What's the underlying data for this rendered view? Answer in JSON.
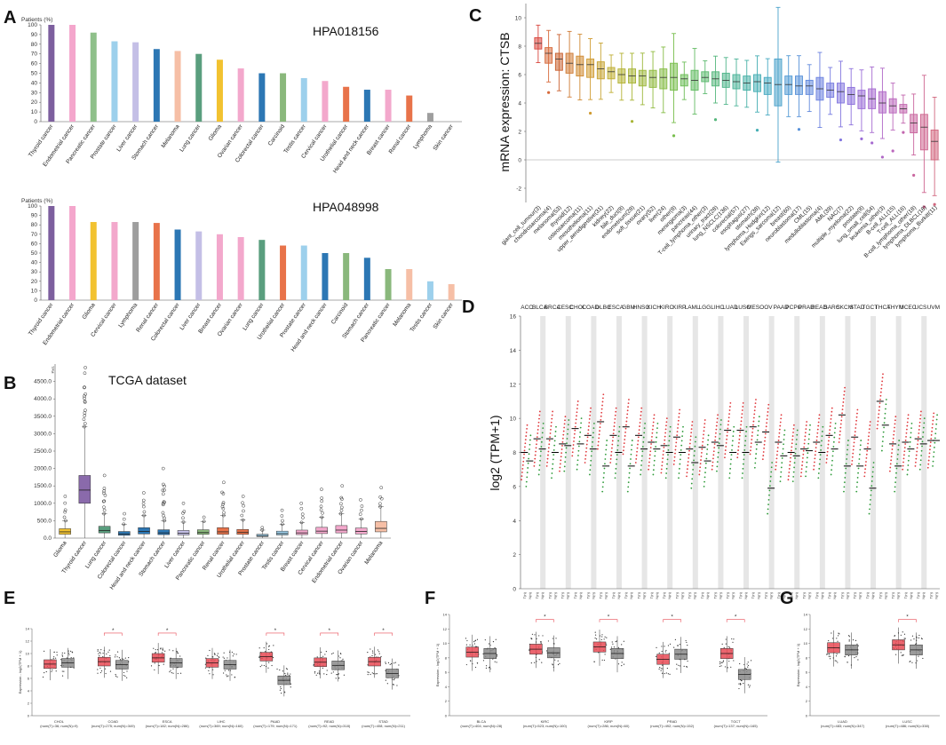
{
  "panels": {
    "A": "A",
    "B": "B",
    "C": "C",
    "D": "D",
    "E": "E",
    "F": "F",
    "G": "G"
  },
  "chart_data": [
    {
      "id": "A1",
      "type": "bar",
      "title": "HPA018156",
      "ylabel": "Patients (%)",
      "ylim": [
        0,
        100
      ],
      "yticks": [
        0,
        10,
        20,
        30,
        40,
        50,
        60,
        70,
        80,
        90,
        100
      ],
      "categories": [
        "Thyroid cancer",
        "Endometrial cancer",
        "Pancreatic cancer",
        "Prostate cancer",
        "Liver cancer",
        "Stomach cancer",
        "Melanoma",
        "Lung cancer",
        "Glioma",
        "Ovarian cancer",
        "Colorectal cancer",
        "Carcinoid",
        "Testis cancer",
        "Cervical cancer",
        "Urothelial cancer",
        "Head and neck cancer",
        "Breast cancer",
        "Renal cancer",
        "Lymphoma",
        "Skin cancer"
      ],
      "values": [
        100,
        100,
        92,
        83,
        82,
        75,
        73,
        70,
        64,
        55,
        50,
        50,
        45,
        42,
        36,
        33,
        33,
        27,
        9,
        0
      ],
      "colors": [
        "#7d5f9e",
        "#f4a6cc",
        "#8fc08a",
        "#9dd0ec",
        "#c4bfe6",
        "#2c77b4",
        "#f6bfa6",
        "#5a9e7e",
        "#f2c230",
        "#f3a8cc",
        "#2c77b4",
        "#8ab87c",
        "#9dd0ec",
        "#f3a8cc",
        "#e8734a",
        "#2c77b4",
        "#f3a8cc",
        "#e8734a",
        "#9e9e9e",
        "#cccccc"
      ]
    },
    {
      "id": "A2",
      "type": "bar",
      "title": "HPA048998",
      "ylabel": "Patients (%)",
      "ylim": [
        0,
        100
      ],
      "yticks": [
        0,
        10,
        20,
        30,
        40,
        50,
        60,
        70,
        80,
        90,
        100
      ],
      "categories": [
        "Thyroid cancer",
        "Endometrial cancer",
        "Glioma",
        "Cervical cancer",
        "Lymphoma",
        "Renal cancer",
        "Colorectal cancer",
        "Liver cancer",
        "Breast cancer",
        "Ovarian cancer",
        "Lung cancer",
        "Urothelial cancer",
        "Prostate cancer",
        "Head and neck cancer",
        "Carcinoid",
        "Stomach cancer",
        "Pancreatic cancer",
        "Melanoma",
        "Testis cancer",
        "Skin cancer"
      ],
      "values": [
        100,
        100,
        83,
        83,
        83,
        82,
        75,
        73,
        70,
        67,
        64,
        58,
        58,
        50,
        50,
        45,
        33,
        33,
        20,
        17
      ],
      "colors": [
        "#7d5f9e",
        "#f4a6cc",
        "#f2c230",
        "#f3a8cc",
        "#9e9e9e",
        "#e8734a",
        "#2c77b4",
        "#c4bfe6",
        "#f3a8cc",
        "#f3a8cc",
        "#5a9e7e",
        "#e8734a",
        "#9dd0ec",
        "#2c77b4",
        "#8ab87c",
        "#2c77b4",
        "#8ab87c",
        "#f6bfa6",
        "#9dd0ec",
        "#f6bfa6"
      ]
    },
    {
      "id": "B",
      "type": "box",
      "title": "TCGA dataset",
      "ylabel": "TPM",
      "ylim": [
        0,
        5000
      ],
      "yticks": [
        "0.0",
        "500.0",
        "1000.0",
        "1500.0",
        "2000.0",
        "2500.0",
        "3000.0",
        "3500.0",
        "4000.0",
        "4500.0"
      ],
      "categories": [
        "Glioma",
        "Thyroid cancer",
        "Lung cancer",
        "Colorectal cancer",
        "Head and neck cancer",
        "Stomach cancer",
        "Liver cancer",
        "Pancreatic cancer",
        "Renal cancer",
        "Urothelial cancer",
        "Prostate cancer",
        "Testis cancer",
        "Breast cancer",
        "Cervical cancer",
        "Endometrial cancer",
        "Ovarian cancer",
        "Melanoma"
      ],
      "medians": [
        180,
        1380,
        220,
        120,
        190,
        150,
        140,
        160,
        180,
        170,
        70,
        130,
        150,
        200,
        230,
        190,
        280
      ],
      "q1": [
        110,
        1000,
        150,
        80,
        120,
        100,
        90,
        110,
        110,
        110,
        45,
        90,
        100,
        130,
        150,
        120,
        180
      ],
      "q3": [
        270,
        1800,
        340,
        190,
        300,
        240,
        220,
        240,
        300,
        250,
        110,
        200,
        230,
        310,
        360,
        290,
        480
      ],
      "whisker_high": [
        500,
        3200,
        700,
        400,
        650,
        500,
        460,
        480,
        650,
        520,
        230,
        400,
        450,
        600,
        700,
        550,
        900
      ],
      "max_outlier": [
        1200,
        4900,
        1800,
        700,
        1300,
        2000,
        1000,
        600,
        1600,
        1200,
        300,
        800,
        1000,
        1400,
        1500,
        1100,
        1450
      ],
      "colors": [
        "#f2c230",
        "#8a6aab",
        "#5a9e7e",
        "#2c77b4",
        "#2c77b4",
        "#2c77b4",
        "#c4bfe6",
        "#8ab87c",
        "#e8734a",
        "#e8734a",
        "#9dd0ec",
        "#9dd0ec",
        "#f3a8cc",
        "#f3a8cc",
        "#f3a8cc",
        "#f3a8cc",
        "#f6bfa6"
      ]
    },
    {
      "id": "C",
      "type": "box",
      "ylabel": "mRNA expression: CTSB",
      "ylim": [
        -3,
        11
      ],
      "yticks": [
        -2,
        0,
        2,
        4,
        6,
        8,
        10
      ],
      "categories": [
        "giant_cell_tumour(3)",
        "chondrosarcoma(4)",
        "melanoma(53)",
        "thyroid(12)",
        "osteosarcoma(11)",
        "mesothelioma(11)",
        "upper_aerodigestive(31)",
        "kidney(22)",
        "bile_duct(8)",
        "endometrium(28)",
        "soft_tissue(21)",
        "ovary(52)",
        "liver(24)",
        "other(8)",
        "meningioma(3)",
        "pancreas(44)",
        "T-cell_lymphoma_other(3)",
        "urinary_tract(28)",
        "lung_NSCLC(136)",
        "colorectal(57)",
        "esophagus(27)",
        "stomach(38)",
        "lymphoma_Hodgkin(12)",
        "Ewings_sarcoma(12)",
        "breast(60)",
        "neuroblastoma(17)",
        "CML(15)",
        "medulloblastoma(4)",
        "AML(39)",
        "NAC(7)",
        "multiple_myeloma(22)",
        "prostate(8)",
        "lung_small_cell(54)",
        "leukemia_other(3)",
        "B-cell_ALL(15)",
        "T-cell_ALL(16)",
        "B-cell_lymphoma_other(18)",
        "lymphoma_DLBCL(18)",
        "lymphoma_Burkitt(11)"
      ],
      "medians": [
        8.2,
        7.5,
        7.1,
        6.8,
        6.7,
        6.7,
        6.4,
        6.2,
        6.0,
        5.9,
        5.9,
        5.8,
        5.8,
        5.8,
        5.7,
        5.6,
        5.8,
        5.7,
        5.6,
        5.5,
        5.4,
        5.5,
        5.4,
        5.3,
        5.3,
        5.2,
        5.2,
        5.0,
        4.9,
        4.8,
        4.6,
        4.5,
        4.3,
        4.0,
        3.8,
        3.6,
        2.6,
        2.3,
        1.3
      ],
      "q1": [
        7.8,
        6.8,
        6.3,
        6.1,
        5.9,
        5.8,
        5.7,
        5.7,
        5.4,
        5.4,
        5.2,
        5.1,
        5.0,
        4.9,
        5.2,
        4.9,
        5.5,
        5.2,
        5.1,
        5.0,
        4.9,
        4.8,
        4.6,
        3.8,
        4.6,
        4.6,
        4.6,
        4.2,
        4.4,
        4.0,
        3.9,
        3.6,
        3.6,
        3.3,
        3.3,
        3.3,
        1.9,
        0.7,
        0.0
      ],
      "q3": [
        8.6,
        7.9,
        7.5,
        7.5,
        7.3,
        7.1,
        6.9,
        6.5,
        6.4,
        6.4,
        6.3,
        6.3,
        6.4,
        6.8,
        6.0,
        6.3,
        6.2,
        6.2,
        6.1,
        6.0,
        5.9,
        6.0,
        5.8,
        7.1,
        5.9,
        5.9,
        5.6,
        5.8,
        5.4,
        5.4,
        5.1,
        4.9,
        5.0,
        4.8,
        4.3,
        3.9,
        3.2,
        3.2,
        2.1
      ],
      "colors": [
        "#d9453d",
        "#d76a3b",
        "#c9602f",
        "#cf7a33",
        "#d08a32",
        "#d09b32",
        "#c7a433",
        "#bfae33",
        "#b4b233",
        "#a8b536",
        "#9db73a",
        "#90ba3f",
        "#85bc45",
        "#78be4d",
        "#6cbd57",
        "#62bb62",
        "#5bb96e",
        "#55b77c",
        "#4fb58a",
        "#4ab398",
        "#47b0a6",
        "#46aeb4",
        "#46a9c1",
        "#4aa2cb",
        "#519ad3",
        "#5891d9",
        "#6088dc",
        "#6a80df",
        "#757ae0",
        "#8175df",
        "#8d71dc",
        "#9a6dd7",
        "#a66ad0",
        "#b068c7",
        "#ba66bc",
        "#c266ae",
        "#c9669f",
        "#ce668f",
        "#d1667e"
      ]
    },
    {
      "id": "D",
      "type": "scatter",
      "ylabel": "log2 (TPM+1)",
      "ylim": [
        0,
        16
      ],
      "yticks": [
        0,
        2,
        4,
        6,
        8,
        10,
        12,
        14,
        16
      ],
      "categories": [
        "ACC",
        "BLCA",
        "BRCA",
        "CESC",
        "CHOL",
        "COAD",
        "DLBC",
        "ESCA",
        "GBM",
        "HNSC",
        "KICH",
        "KIRC",
        "KIRP",
        "LAML",
        "LGG",
        "LIHC",
        "LUAD",
        "LUSC",
        "MESO",
        "OV",
        "PAAD",
        "PCPG",
        "PRAD",
        "READ",
        "SARC",
        "SKCM",
        "STAD",
        "TGCT",
        "THCA",
        "THYM",
        "UCEC",
        "UCS",
        "UVM"
      ],
      "highlighted": [
        "DLBC",
        "GBM",
        "OV",
        "PAAD",
        "SKCM",
        "STAD",
        "TGCT",
        "THCA"
      ],
      "tumor_median": [
        8.0,
        8.8,
        8.8,
        8.5,
        9.4,
        9.0,
        9.8,
        9.0,
        9.5,
        9.0,
        8.6,
        8.4,
        8.9,
        8.2,
        8.3,
        8.6,
        9.3,
        9.3,
        9.5,
        9.2,
        8.6,
        8.0,
        8.2,
        8.6,
        9.0,
        10.2,
        8.9,
        8.2,
        11.0,
        8.5,
        8.6,
        8.8,
        8.7
      ],
      "normal_median": [
        7.5,
        8.2,
        8.0,
        8.4,
        8.5,
        8.2,
        7.2,
        8.0,
        7.2,
        8.2,
        8.2,
        8.0,
        8.0,
        7.4,
        7.5,
        8.4,
        8.0,
        8.0,
        8.6,
        5.9,
        7.8,
        7.8,
        8.1,
        8.0,
        8.2,
        7.2,
        7.2,
        5.9,
        9.6,
        7.2,
        8.2,
        8.5,
        8.7
      ],
      "x_tick_prefix": [
        "T",
        "N"
      ]
    },
    {
      "id": "E",
      "type": "box",
      "ylabel": "Expression - log2(TPM + 1)",
      "ylim": [
        0,
        14
      ],
      "yticks": [
        0,
        2,
        4,
        6,
        8,
        10,
        12,
        14
      ],
      "categories": [
        "CHOL",
        "COAD",
        "ESCA",
        "LIHC",
        "PAAD",
        "READ",
        "STAD"
      ],
      "sample_labels": [
        "(num(T)=36; num(N)=9)",
        "(num(T)=275; num(N)=349)",
        "(num(T)=182; num(N)=286)",
        "(num(T)=369; num(N)=160)",
        "(num(T)=179; num(N)=171)",
        "(num(T)=92; num(N)=318)",
        "(num(T)=408; num(N)=211)"
      ],
      "tumor_median": [
        8.3,
        8.7,
        9.3,
        8.5,
        9.5,
        8.6,
        8.7
      ],
      "normal_median": [
        8.5,
        8.2,
        8.5,
        8.2,
        5.7,
        8.1,
        6.8
      ],
      "significant": [
        false,
        true,
        true,
        false,
        true,
        true,
        true
      ]
    },
    {
      "id": "F",
      "type": "box",
      "ylabel": "Expression - log2(TPM + 1)",
      "ylim": [
        0,
        14
      ],
      "yticks": [
        0,
        2,
        4,
        6,
        8,
        10,
        12,
        14
      ],
      "categories": [
        "BLCA",
        "KIRC",
        "KIRP",
        "PRAD",
        "TGCT"
      ],
      "sample_labels": [
        "(num(T)=404; num(N)=28)",
        "(num(T)=523; num(N)=100)",
        "(num(T)=286; num(N)=60)",
        "(num(T)=492; num(N)=152)",
        "(num(T)=137; num(N)=165)"
      ],
      "tumor_median": [
        8.8,
        9.2,
        9.5,
        7.8,
        8.6
      ],
      "normal_median": [
        8.6,
        8.7,
        8.6,
        8.5,
        5.7
      ],
      "significant": [
        false,
        true,
        true,
        true,
        true
      ]
    },
    {
      "id": "G",
      "type": "box",
      "ylabel": "Expression - log2(TPM + 1)",
      "ylim": [
        0,
        14
      ],
      "yticks": [
        0,
        2,
        4,
        6,
        8,
        10,
        12,
        14
      ],
      "categories": [
        "LUAD",
        "LUSC"
      ],
      "sample_labels": [
        "(num(T)=483; num(N)=347)",
        "(num(T)=486; num(N)=338)"
      ],
      "tumor_median": [
        9.4,
        9.8
      ],
      "normal_median": [
        9.1,
        9.1
      ],
      "significant": [
        false,
        true
      ]
    }
  ]
}
